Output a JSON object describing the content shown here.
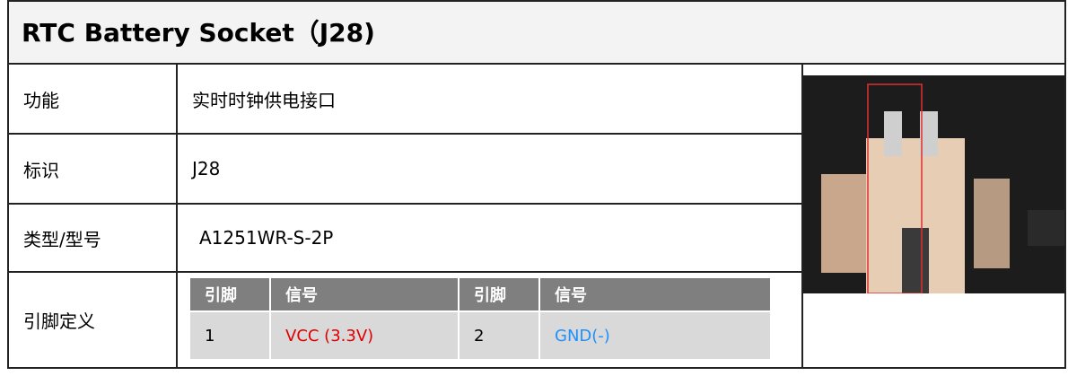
{
  "header": {
    "title": "RTC Battery Socket（J28)"
  },
  "table": {
    "rows": [
      {
        "label": "功能",
        "value": "实时时钟供电接口"
      },
      {
        "label": "标识",
        "value": "J28"
      },
      {
        "label": "类型/型号",
        "value": "A1251WR-S-2P"
      },
      {
        "label": "引脚定义"
      }
    ]
  },
  "pin_table": {
    "headers": [
      "引脚",
      "信号",
      "引脚",
      "信号"
    ],
    "rows": [
      [
        "1",
        "VCC (3.3V)",
        "2",
        "GND(-)"
      ]
    ]
  }
}
